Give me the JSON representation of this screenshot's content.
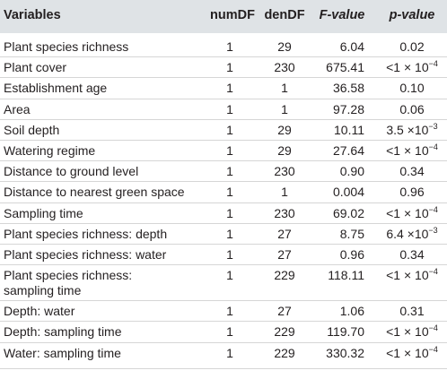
{
  "table": {
    "headers": {
      "variables": "Variables",
      "numdf": "numDF",
      "dendf": "denDF",
      "f_value": "F-value",
      "p_value": "p-value"
    },
    "rows": [
      {
        "variable": "Plant species richness",
        "numdf": "1",
        "dendf": "29",
        "f": "6.04",
        "p_base": "0.02",
        "p_exp": ""
      },
      {
        "variable": "Plant cover",
        "numdf": "1",
        "dendf": "230",
        "f": "675.41",
        "p_base": "<1 × 10",
        "p_exp": "−4"
      },
      {
        "variable": "Establishment age",
        "numdf": "1",
        "dendf": "1",
        "f": "36.58",
        "p_base": "0.10",
        "p_exp": ""
      },
      {
        "variable": "Area",
        "numdf": "1",
        "dendf": "1",
        "f": "97.28",
        "p_base": "0.06",
        "p_exp": ""
      },
      {
        "variable": "Soil depth",
        "numdf": "1",
        "dendf": "29",
        "f": "10.11",
        "p_base": "3.5 ×10",
        "p_exp": "−3"
      },
      {
        "variable": "Watering regime",
        "numdf": "1",
        "dendf": "29",
        "f": "27.64",
        "p_base": "<1 × 10",
        "p_exp": "−4"
      },
      {
        "variable": "Distance to ground level",
        "numdf": "1",
        "dendf": "230",
        "f": "0.90",
        "p_base": "0.34",
        "p_exp": ""
      },
      {
        "variable": "Distance to nearest green space",
        "numdf": "1",
        "dendf": "1",
        "f": "0.004",
        "p_base": "0.96",
        "p_exp": ""
      },
      {
        "variable": "Sampling time",
        "numdf": "1",
        "dendf": "230",
        "f": "69.02",
        "p_base": "<1 × 10",
        "p_exp": "−4"
      },
      {
        "variable": "Plant species richness: depth",
        "numdf": "1",
        "dendf": "27",
        "f": "8.75",
        "p_base": "6.4 ×10",
        "p_exp": "−3"
      },
      {
        "variable": "Plant species richness: water",
        "numdf": "1",
        "dendf": "27",
        "f": "0.96",
        "p_base": "0.34",
        "p_exp": ""
      },
      {
        "variable": "Plant species richness:",
        "variable_line2": "sampling time",
        "numdf": "1",
        "dendf": "229",
        "f": "118.11",
        "p_base": "<1 × 10",
        "p_exp": "−4"
      },
      {
        "variable": "Depth: water",
        "numdf": "1",
        "dendf": "27",
        "f": "1.06",
        "p_base": "0.31",
        "p_exp": ""
      },
      {
        "variable": "Depth: sampling time",
        "numdf": "1",
        "dendf": "229",
        "f": "119.70",
        "p_base": "<1 × 10",
        "p_exp": "−4"
      },
      {
        "variable": "Water: sampling time",
        "numdf": "1",
        "dendf": "229",
        "f": "330.32",
        "p_base": "<1 × 10",
        "p_exp": "−4"
      }
    ]
  }
}
